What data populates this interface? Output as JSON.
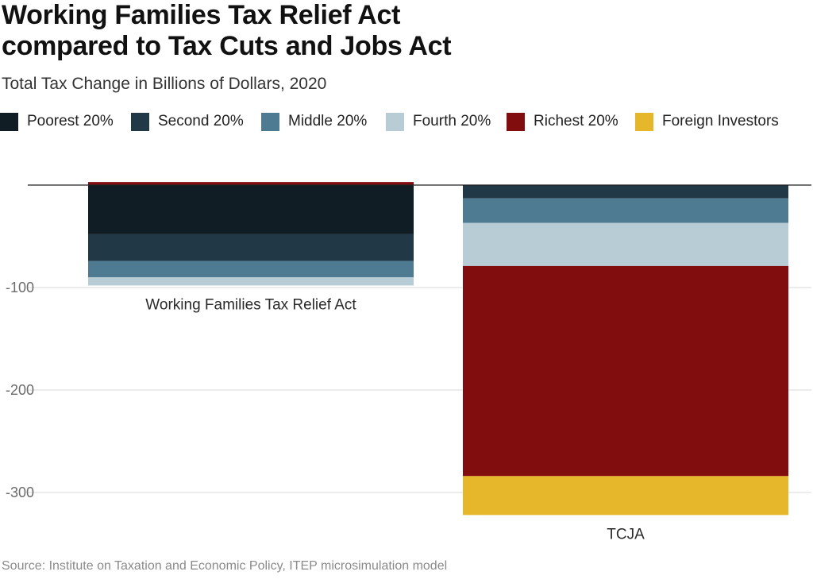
{
  "chart_data": {
    "type": "bar",
    "stacked": true,
    "title": "Working Families Tax Relief Act\ncompared to Tax Cuts and Jobs Act",
    "subtitle": "Total Tax Change in Billions of Dollars, 2020",
    "categories": [
      "Working Families Tax Relief Act",
      "TCJA"
    ],
    "series": [
      {
        "name": "Poorest 20%",
        "color": "#111d25",
        "values": [
          -48,
          0
        ]
      },
      {
        "name": "Second 20%",
        "color": "#213846",
        "values": [
          -26,
          -13
        ]
      },
      {
        "name": "Middle 20%",
        "color": "#4e7b92",
        "values": [
          -16,
          -24
        ]
      },
      {
        "name": "Fourth 20%",
        "color": "#b8ccd6",
        "values": [
          -8,
          -42
        ]
      },
      {
        "name": "Richest 20%",
        "color": "#820d0e",
        "values": [
          3,
          -205
        ]
      },
      {
        "name": "Foreign Investors",
        "color": "#e6b72a",
        "values": [
          0,
          -38
        ]
      }
    ],
    "xlabel": "",
    "ylabel": "",
    "yticks": [
      -100,
      -200,
      -300
    ],
    "ylim": [
      -340,
      0
    ],
    "grid": true,
    "legend": "top-left"
  },
  "source": "Source: Institute on Taxation and Economic Policy, ITEP microsimulation model"
}
